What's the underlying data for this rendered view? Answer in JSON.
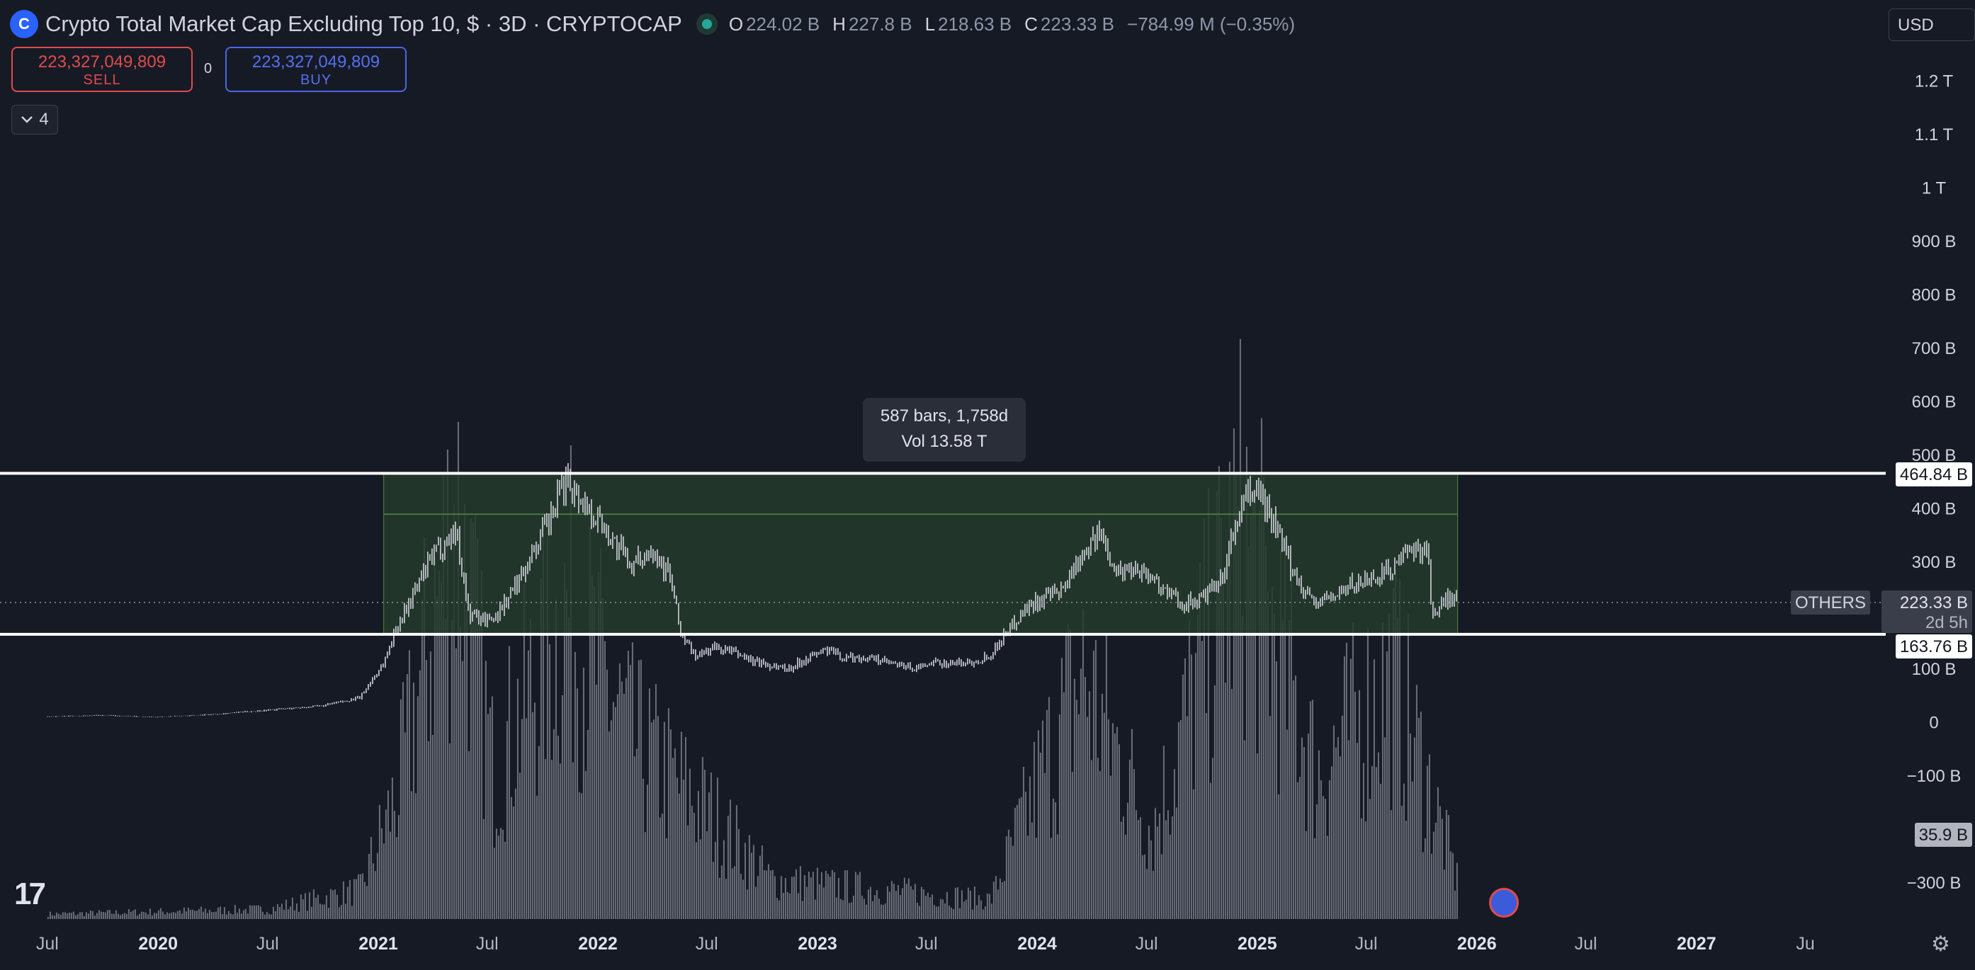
{
  "header": {
    "logo_glyph": "C",
    "title": "Crypto Total Market Cap Excluding Top 10, $ · 3D · CRYPTOCAP",
    "ohlc": [
      {
        "key": "O",
        "value": "224.02 B"
      },
      {
        "key": "H",
        "value": "227.8 B"
      },
      {
        "key": "L",
        "value": "218.63 B"
      },
      {
        "key": "C",
        "value": "223.33 B"
      }
    ],
    "change": "−784.99 M (−0.35%)"
  },
  "trade": {
    "sell_value": "223,327,049,809",
    "sell_label": "SELL",
    "spread": "0",
    "buy_value": "223,327,049,809",
    "buy_label": "BUY"
  },
  "indicators_toggle": {
    "icon": "chevron-down-icon",
    "count": "4"
  },
  "currency": {
    "selected": "USD"
  },
  "measure_tooltip": {
    "bars": "587 bars, 1,758d",
    "volume": "Vol 13.58 T"
  },
  "price_labels": {
    "upper_line": "464.84 B",
    "symbol": "OTHERS",
    "last_price": "223.33 B",
    "countdown": "2d 5h",
    "lower_line": "163.76 B",
    "volume": "35.9 B"
  },
  "colors": {
    "background": "#161a25",
    "candles": "#d1d4dc",
    "range_fill": "#243b2c",
    "range_border": "#4f8a3d",
    "sell": "#e04b4b",
    "buy": "#4a66e8",
    "volume": "#6b6f7a"
  },
  "chart_data": {
    "type": "candlestick",
    "title": "Crypto Total Market Cap Excluding Top 10, $ · 3D · CRYPTOCAP",
    "y_ticks": [
      {
        "label": "1.2 T",
        "value": 1200
      },
      {
        "label": "1.1 T",
        "value": 1100
      },
      {
        "label": "1 T",
        "value": 1000
      },
      {
        "label": "900 B",
        "value": 900
      },
      {
        "label": "800 B",
        "value": 800
      },
      {
        "label": "700 B",
        "value": 700
      },
      {
        "label": "600 B",
        "value": 600
      },
      {
        "label": "500 B",
        "value": 500
      },
      {
        "label": "400 B",
        "value": 400
      },
      {
        "label": "300 B",
        "value": 300
      },
      {
        "label": "100 B",
        "value": 100
      },
      {
        "label": "0",
        "value": 0
      },
      {
        "label": "−100 B",
        "value": -100
      },
      {
        "label": "−300 B",
        "value": -300
      }
    ],
    "x_ticks": [
      {
        "label": "Jul",
        "date": "2019-07-01"
      },
      {
        "label": "2020",
        "date": "2020-01-01",
        "bold": true
      },
      {
        "label": "Jul",
        "date": "2020-07-01"
      },
      {
        "label": "2021",
        "date": "2021-01-01",
        "bold": true
      },
      {
        "label": "Jul",
        "date": "2021-07-01"
      },
      {
        "label": "2022",
        "date": "2022-01-01",
        "bold": true
      },
      {
        "label": "Jul",
        "date": "2022-07-01"
      },
      {
        "label": "2023",
        "date": "2023-01-01",
        "bold": true
      },
      {
        "label": "Jul",
        "date": "2023-07-01"
      },
      {
        "label": "2024",
        "date": "2024-01-01",
        "bold": true
      },
      {
        "label": "Jul",
        "date": "2024-07-01"
      },
      {
        "label": "2025",
        "date": "2025-01-01",
        "bold": true
      },
      {
        "label": "Jul",
        "date": "2025-07-01"
      },
      {
        "label": "2026",
        "date": "2026-01-01",
        "bold": true
      },
      {
        "label": "Jul",
        "date": "2026-07-01"
      },
      {
        "label": "2027",
        "date": "2027-01-01",
        "bold": true
      },
      {
        "label": "Ju",
        "date": "2027-07-01"
      }
    ],
    "price_series_B": {
      "dates": [
        "2019-07-01",
        "2019-10-01",
        "2020-01-01",
        "2020-04-01",
        "2020-07-01",
        "2020-10-01",
        "2020-12-01",
        "2021-01-10",
        "2021-02-01",
        "2021-03-01",
        "2021-04-01",
        "2021-05-10",
        "2021-06-01",
        "2021-07-10",
        "2021-08-15",
        "2021-09-10",
        "2021-10-15",
        "2021-11-10",
        "2021-12-01",
        "2022-01-01",
        "2022-02-01",
        "2022-03-01",
        "2022-04-01",
        "2022-05-01",
        "2022-05-20",
        "2022-06-15",
        "2022-07-10",
        "2022-08-15",
        "2022-09-15",
        "2022-10-15",
        "2022-11-15",
        "2022-12-15",
        "2023-01-15",
        "2023-02-15",
        "2023-03-15",
        "2023-04-15",
        "2023-05-15",
        "2023-06-15",
        "2023-07-15",
        "2023-08-15",
        "2023-09-15",
        "2023-10-15",
        "2023-11-15",
        "2023-12-15",
        "2024-01-10",
        "2024-02-10",
        "2024-03-15",
        "2024-04-15",
        "2024-05-15",
        "2024-06-15",
        "2024-07-10",
        "2024-08-05",
        "2024-09-01",
        "2024-10-01",
        "2024-11-01",
        "2024-12-05",
        "2025-01-01",
        "2025-02-01",
        "2025-03-01",
        "2025-04-08",
        "2025-05-15",
        "2025-06-15",
        "2025-07-15",
        "2025-08-15",
        "2025-09-15",
        "2025-10-10",
        "2025-10-20",
        "2025-11-10",
        "2025-11-30"
      ],
      "close": [
        10,
        12,
        9,
        14,
        22,
        30,
        45,
        110,
        180,
        240,
        310,
        360,
        200,
        190,
        250,
        310,
        380,
        460,
        420,
        380,
        330,
        290,
        330,
        270,
        160,
        120,
        140,
        130,
        115,
        105,
        100,
        120,
        135,
        120,
        120,
        115,
        105,
        100,
        110,
        110,
        112,
        125,
        175,
        215,
        230,
        240,
        320,
        350,
        280,
        290,
        270,
        240,
        220,
        230,
        260,
        400,
        440,
        360,
        280,
        220,
        240,
        260,
        270,
        290,
        320,
        330,
        190,
        230,
        223
      ]
    },
    "volume_B": {
      "dates": [
        "2019-07-01",
        "2020-07-01",
        "2020-12-01",
        "2021-02-01",
        "2021-05-10",
        "2021-07-10",
        "2021-11-10",
        "2022-03-01",
        "2022-06-15",
        "2022-10-15",
        "2023-04-15",
        "2023-10-15",
        "2024-03-15",
        "2024-07-10",
        "2024-12-05",
        "2025-04-08",
        "2025-08-15",
        "2025-11-30"
      ],
      "values": [
        5,
        10,
        30,
        130,
        420,
        150,
        320,
        180,
        120,
        40,
        30,
        20,
        250,
        90,
        400,
        150,
        250,
        35.9
      ]
    },
    "levels": {
      "upper": 464.84,
      "lower": 163.76,
      "last": 223.33
    },
    "measure_range": {
      "start": "2021-01-10",
      "end": "2025-11-30",
      "bars": 587,
      "days": 1758,
      "volume": "13.58 T"
    }
  }
}
